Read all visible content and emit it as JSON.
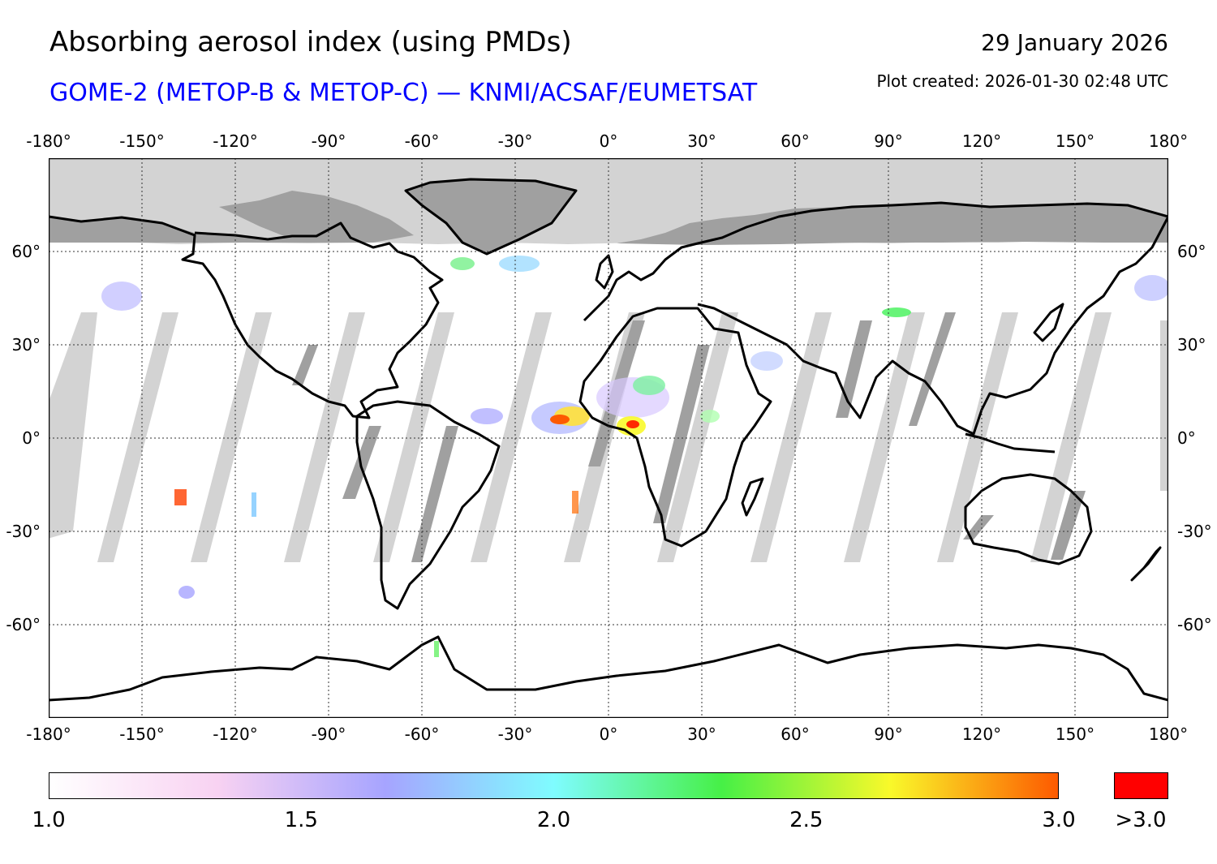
{
  "header": {
    "title": "Absorbing aerosol index (using PMDs)",
    "subtitle": "GOME-2 (METOP-B & METOP-C) — KNMI/ACSAF/EUMETSAT",
    "date": "29 January 2026",
    "plot_created": "Plot created: 2026-01-30 02:48 UTC"
  },
  "map": {
    "projection": "equirectangular",
    "lon_range": [
      -180,
      180
    ],
    "lat_range": [
      -90,
      90
    ],
    "lon_ticks": [
      "-180°",
      "-150°",
      "-120°",
      "-90°",
      "-60°",
      "-30°",
      "0°",
      "30°",
      "60°",
      "90°",
      "120°",
      "150°",
      "180°"
    ],
    "lat_ticks": [
      "60°",
      "30°",
      "0°",
      "-30°",
      "-60°"
    ],
    "lon_tick_values": [
      -180,
      -150,
      -120,
      -90,
      -60,
      -30,
      0,
      30,
      60,
      90,
      120,
      150,
      180
    ],
    "lat_tick_values": [
      60,
      30,
      0,
      -30,
      -60
    ],
    "colors": {
      "no_data": "#d3d3d3",
      "night_land": "#a0a0a0",
      "coast": "#000000",
      "grid": "#333333"
    }
  },
  "colorbar": {
    "min": 1.0,
    "max": 3.0,
    "tick_labels": [
      "1.0",
      "1.5",
      "2.0",
      "2.5",
      "3.0"
    ],
    "tick_values": [
      1.0,
      1.5,
      2.0,
      2.5,
      3.0
    ],
    "over_label": ">3.0",
    "over_color": "#ff0000",
    "stops": [
      "#ffffff",
      "#f8d2f2",
      "#a6a4ff",
      "#7ffcff",
      "#46f046",
      "#f9f92a",
      "#fd5a00"
    ]
  }
}
